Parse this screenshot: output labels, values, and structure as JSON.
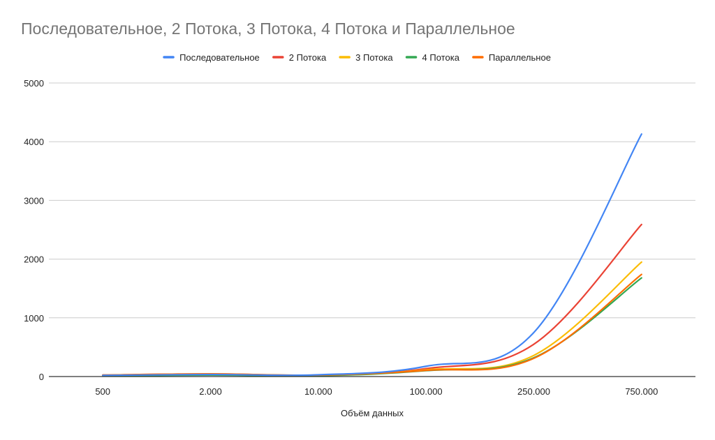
{
  "chart_data": {
    "type": "line",
    "title": "Последовательное, 2 Потока, 3 Потока, 4 Потока и Параллельное",
    "xlabel": "Объём данных",
    "ylabel": "",
    "categories": [
      "500",
      "2.000",
      "10.000",
      "100.000",
      "250.000",
      "750.000"
    ],
    "ylim": [
      0,
      5000
    ],
    "yticks": [
      "0",
      "1000",
      "2000",
      "3000",
      "4000",
      "5000"
    ],
    "grid": true,
    "legend": "top-center",
    "series": [
      {
        "name": "Последовательное",
        "color": "#4285f4",
        "values": [
          20,
          35,
          30,
          175,
          750,
          4130
        ]
      },
      {
        "name": "2 Потока",
        "color": "#ea4335",
        "values": [
          25,
          45,
          25,
          135,
          550,
          2590
        ]
      },
      {
        "name": "3 Потока",
        "color": "#fbbc04",
        "values": [
          20,
          40,
          20,
          115,
          360,
          1950
        ]
      },
      {
        "name": "4 Потока",
        "color": "#34a853",
        "values": [
          10,
          25,
          15,
          100,
          320,
          1680
        ]
      },
      {
        "name": "Параллельное",
        "color": "#ff6d01",
        "values": [
          25,
          45,
          25,
          105,
          310,
          1740
        ]
      }
    ]
  }
}
